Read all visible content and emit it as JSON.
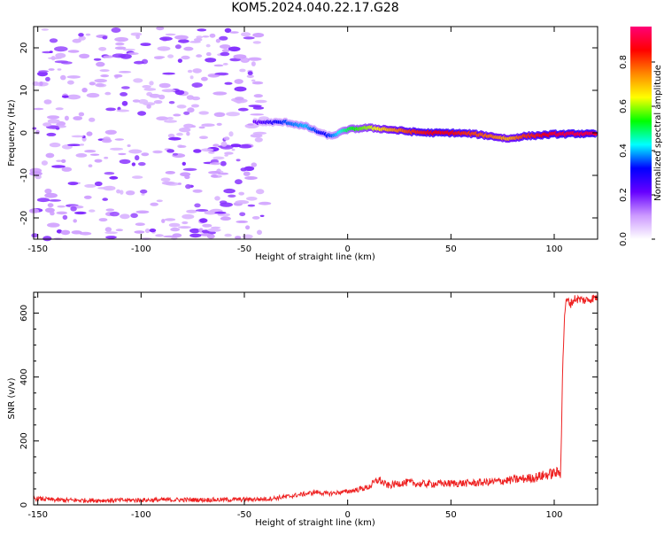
{
  "title": "KOM5.2024.040.22.17.G28",
  "chart_data": [
    {
      "type": "heatmap",
      "xlabel": "Height of straight line (km)",
      "ylabel": "Frequency (Hz)",
      "xlim": [
        -152,
        121
      ],
      "ylim": [
        -25,
        25
      ],
      "xticks": [
        -150,
        -100,
        -50,
        0,
        50,
        100
      ],
      "yticks": [
        -20,
        -10,
        0,
        10,
        20
      ],
      "colorbar": {
        "label": "Normalized spectral amplitude",
        "range": [
          0.0,
          0.96
        ],
        "ticks": [
          0.0,
          0.2,
          0.4,
          0.6,
          0.8
        ],
        "tick_labels": [
          "0.0",
          "0.2",
          "0.4",
          "0.6",
          "0.8"
        ],
        "colors": [
          "#ffffff",
          "#cc99ff",
          "#6600ff",
          "#0000ff",
          "#00ffff",
          "#00ff00",
          "#ffff00",
          "#ff8800",
          "#ff0000",
          "#ff0077"
        ]
      },
      "signal_track": {
        "x": [
          -45,
          -40,
          -30,
          -20,
          -12,
          -8,
          0,
          10,
          20,
          30,
          40,
          50,
          60,
          70,
          78,
          85,
          95,
          100,
          105,
          110,
          115,
          120
        ],
        "frequency": [
          2.5,
          2.5,
          2.5,
          1.5,
          -0.2,
          -0.8,
          0.8,
          1.2,
          0.8,
          0.3,
          0.0,
          0.0,
          -0.2,
          -0.8,
          -1.4,
          -0.8,
          -0.5,
          -0.3,
          -0.3,
          -0.2,
          -0.2,
          -0.3
        ],
        "amplitude": [
          0.2,
          0.25,
          0.35,
          0.4,
          0.3,
          0.35,
          0.5,
          0.6,
          0.7,
          0.8,
          0.85,
          0.85,
          0.8,
          0.75,
          0.7,
          0.8,
          0.85,
          0.88,
          0.9,
          0.9,
          0.9,
          0.9
        ]
      },
      "noise_region_x": [
        -152,
        -40
      ]
    },
    {
      "type": "line",
      "xlabel": "Height of straight line (km)",
      "ylabel": "SNR (v/v)",
      "xlim": [
        -152,
        121
      ],
      "ylim": [
        0,
        665
      ],
      "xticks": [
        -150,
        -100,
        -50,
        0,
        50,
        100
      ],
      "yticks": [
        0,
        200,
        400,
        600
      ],
      "color": "#ee2222",
      "series": [
        {
          "x": [
            -152,
            -140,
            -120,
            -100,
            -80,
            -60,
            -40,
            -30,
            -20,
            -15,
            -10,
            -5,
            0,
            5,
            10,
            15,
            18,
            20,
            25,
            30,
            35,
            40,
            50,
            60,
            70,
            80,
            90,
            95,
            100,
            103,
            104,
            105,
            106,
            108,
            110,
            115,
            121
          ],
          "y": [
            20,
            15,
            14,
            15,
            16,
            16,
            18,
            25,
            35,
            40,
            35,
            38,
            42,
            48,
            55,
            80,
            65,
            60,
            68,
            70,
            65,
            66,
            67,
            68,
            72,
            78,
            85,
            92,
            100,
            100,
            400,
            600,
            640,
            630,
            645,
            640,
            650
          ]
        }
      ]
    }
  ]
}
